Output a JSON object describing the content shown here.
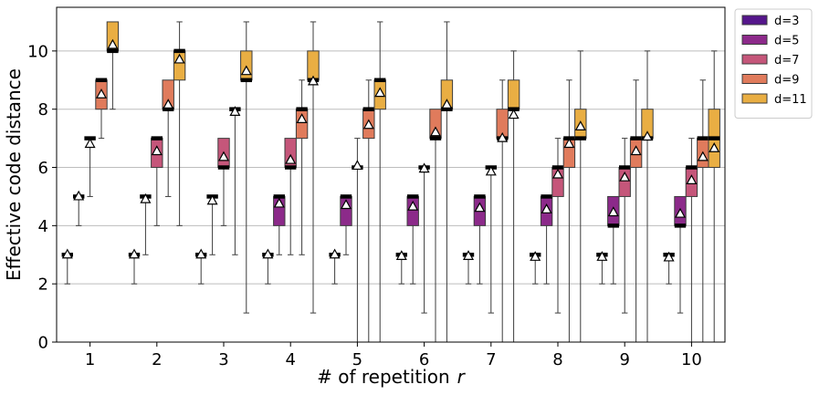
{
  "chart_data": {
    "type": "box",
    "xlabel": "# of repetition",
    "xlabel_var": "r",
    "ylabel": "Effective code distance",
    "ylim": [
      0,
      11.5
    ],
    "yticks": [
      0,
      2,
      4,
      6,
      8,
      10
    ],
    "grid": "horizontal",
    "legend_position": "outside-top-right",
    "categories": [
      "1",
      "2",
      "3",
      "4",
      "5",
      "6",
      "7",
      "8",
      "9",
      "10"
    ],
    "series": [
      {
        "name": "d=3",
        "color": "#55168b",
        "boxes": [
          {
            "whislo": 2,
            "q1": 3,
            "med": 3,
            "q3": 3,
            "whishi": 3,
            "mean": 3.0
          },
          {
            "whislo": 2,
            "q1": 3,
            "med": 3,
            "q3": 3,
            "whishi": 3,
            "mean": 3.0
          },
          {
            "whislo": 2,
            "q1": 3,
            "med": 3,
            "q3": 3,
            "whishi": 3,
            "mean": 3.0
          },
          {
            "whislo": 2,
            "q1": 3,
            "med": 3,
            "q3": 3,
            "whishi": 3,
            "mean": 3.0
          },
          {
            "whislo": 2,
            "q1": 3,
            "med": 3,
            "q3": 3,
            "whishi": 3,
            "mean": 3.0
          },
          {
            "whislo": 2,
            "q1": 3,
            "med": 3,
            "q3": 3,
            "whishi": 3,
            "mean": 2.95
          },
          {
            "whislo": 2,
            "q1": 3,
            "med": 3,
            "q3": 3,
            "whishi": 3,
            "mean": 2.95
          },
          {
            "whislo": 2,
            "q1": 3,
            "med": 3,
            "q3": 3,
            "whishi": 3,
            "mean": 2.92
          },
          {
            "whislo": 2,
            "q1": 3,
            "med": 3,
            "q3": 3,
            "whishi": 3,
            "mean": 2.92
          },
          {
            "whislo": 2,
            "q1": 3,
            "med": 3,
            "q3": 3,
            "whishi": 3,
            "mean": 2.9
          }
        ]
      },
      {
        "name": "d=5",
        "color": "#8c2a8a",
        "boxes": [
          {
            "whislo": 4,
            "q1": 5,
            "med": 5,
            "q3": 5,
            "whishi": 5,
            "mean": 5.0
          },
          {
            "whislo": 3,
            "q1": 5,
            "med": 5,
            "q3": 5,
            "whishi": 5,
            "mean": 4.9
          },
          {
            "whislo": 3,
            "q1": 5,
            "med": 5,
            "q3": 5,
            "whishi": 5,
            "mean": 4.85
          },
          {
            "whislo": 3,
            "q1": 4,
            "med": 5,
            "q3": 5,
            "whishi": 5,
            "mean": 4.75
          },
          {
            "whislo": 3,
            "q1": 4,
            "med": 5,
            "q3": 5,
            "whishi": 5,
            "mean": 4.7
          },
          {
            "whislo": 2,
            "q1": 4,
            "med": 5,
            "q3": 5,
            "whishi": 5,
            "mean": 4.65
          },
          {
            "whislo": 2,
            "q1": 4,
            "med": 5,
            "q3": 5,
            "whishi": 5,
            "mean": 4.6
          },
          {
            "whislo": 2,
            "q1": 4,
            "med": 5,
            "q3": 5,
            "whishi": 5,
            "mean": 4.55
          },
          {
            "whislo": 2,
            "q1": 4,
            "med": 4,
            "q3": 5,
            "whishi": 5,
            "mean": 4.45
          },
          {
            "whislo": 1,
            "q1": 4,
            "med": 4,
            "q3": 5,
            "whishi": 5,
            "mean": 4.4
          }
        ]
      },
      {
        "name": "d=7",
        "color": "#c5567a",
        "boxes": [
          {
            "whislo": 5,
            "q1": 7,
            "med": 7,
            "q3": 7,
            "whishi": 7,
            "mean": 6.8
          },
          {
            "whislo": 4,
            "q1": 6,
            "med": 7,
            "q3": 7,
            "whishi": 7,
            "mean": 6.55
          },
          {
            "whislo": 4,
            "q1": 6,
            "med": 6,
            "q3": 7,
            "whishi": 7,
            "mean": 6.35
          },
          {
            "whislo": 3,
            "q1": 6,
            "med": 6,
            "q3": 7,
            "whishi": 7,
            "mean": 6.25
          },
          {
            "whislo": 0,
            "q1": 6,
            "med": 6,
            "q3": 6,
            "whishi": 7,
            "mean": 6.05
          },
          {
            "whislo": 1,
            "q1": 6,
            "med": 6,
            "q3": 6,
            "whishi": 6,
            "mean": 5.95
          },
          {
            "whislo": 1,
            "q1": 6,
            "med": 6,
            "q3": 6,
            "whishi": 6,
            "mean": 5.85
          },
          {
            "whislo": 1,
            "q1": 5,
            "med": 6,
            "q3": 6,
            "whishi": 7,
            "mean": 5.75
          },
          {
            "whislo": 1,
            "q1": 5,
            "med": 6,
            "q3": 6,
            "whishi": 7,
            "mean": 5.65
          },
          {
            "whislo": 0,
            "q1": 5,
            "med": 6,
            "q3": 6,
            "whishi": 7,
            "mean": 5.55
          }
        ]
      },
      {
        "name": "d=9",
        "color": "#e07b5c",
        "boxes": [
          {
            "whislo": 7,
            "q1": 8,
            "med": 9,
            "q3": 9,
            "whishi": 9,
            "mean": 8.5
          },
          {
            "whislo": 5,
            "q1": 8,
            "med": 8,
            "q3": 9,
            "whishi": 9,
            "mean": 8.15
          },
          {
            "whislo": 3,
            "q1": 8,
            "med": 8,
            "q3": 8,
            "whishi": 8,
            "mean": 7.9
          },
          {
            "whislo": 3,
            "q1": 7,
            "med": 8,
            "q3": 8,
            "whishi": 9,
            "mean": 7.65
          },
          {
            "whislo": 0,
            "q1": 7,
            "med": 8,
            "q3": 8,
            "whishi": 9,
            "mean": 7.45
          },
          {
            "whislo": 0,
            "q1": 7,
            "med": 7,
            "q3": 8,
            "whishi": 8,
            "mean": 7.2
          },
          {
            "whislo": 0,
            "q1": 7,
            "med": 7,
            "q3": 8,
            "whishi": 9,
            "mean": 7.0
          },
          {
            "whislo": 0,
            "q1": 6,
            "med": 7,
            "q3": 7,
            "whishi": 9,
            "mean": 6.8
          },
          {
            "whislo": 0,
            "q1": 6,
            "med": 7,
            "q3": 7,
            "whishi": 9,
            "mean": 6.55
          },
          {
            "whislo": 0,
            "q1": 6,
            "med": 7,
            "q3": 7,
            "whishi": 9,
            "mean": 6.35
          }
        ]
      },
      {
        "name": "d=11",
        "color": "#e9ae43",
        "boxes": [
          {
            "whislo": 8,
            "q1": 10,
            "med": 10,
            "q3": 11,
            "whishi": 11,
            "mean": 10.2
          },
          {
            "whislo": 4,
            "q1": 9,
            "med": 10,
            "q3": 10,
            "whishi": 11,
            "mean": 9.7
          },
          {
            "whislo": 1,
            "q1": 9,
            "med": 9,
            "q3": 10,
            "whishi": 11,
            "mean": 9.3
          },
          {
            "whislo": 1,
            "q1": 9,
            "med": 9,
            "q3": 10,
            "whishi": 11,
            "mean": 8.95
          },
          {
            "whislo": 0,
            "q1": 8,
            "med": 9,
            "q3": 9,
            "whishi": 11,
            "mean": 8.55
          },
          {
            "whislo": 0,
            "q1": 8,
            "med": 8,
            "q3": 9,
            "whishi": 11,
            "mean": 8.15
          },
          {
            "whislo": 0,
            "q1": 8,
            "med": 8,
            "q3": 9,
            "whishi": 10,
            "mean": 7.8
          },
          {
            "whislo": 0,
            "q1": 7,
            "med": 7,
            "q3": 8,
            "whishi": 10,
            "mean": 7.4
          },
          {
            "whislo": 0,
            "q1": 7,
            "med": 7,
            "q3": 8,
            "whishi": 10,
            "mean": 7.05
          },
          {
            "whislo": 0,
            "q1": 6,
            "med": 7,
            "q3": 8,
            "whishi": 10,
            "mean": 6.65
          }
        ]
      }
    ]
  }
}
